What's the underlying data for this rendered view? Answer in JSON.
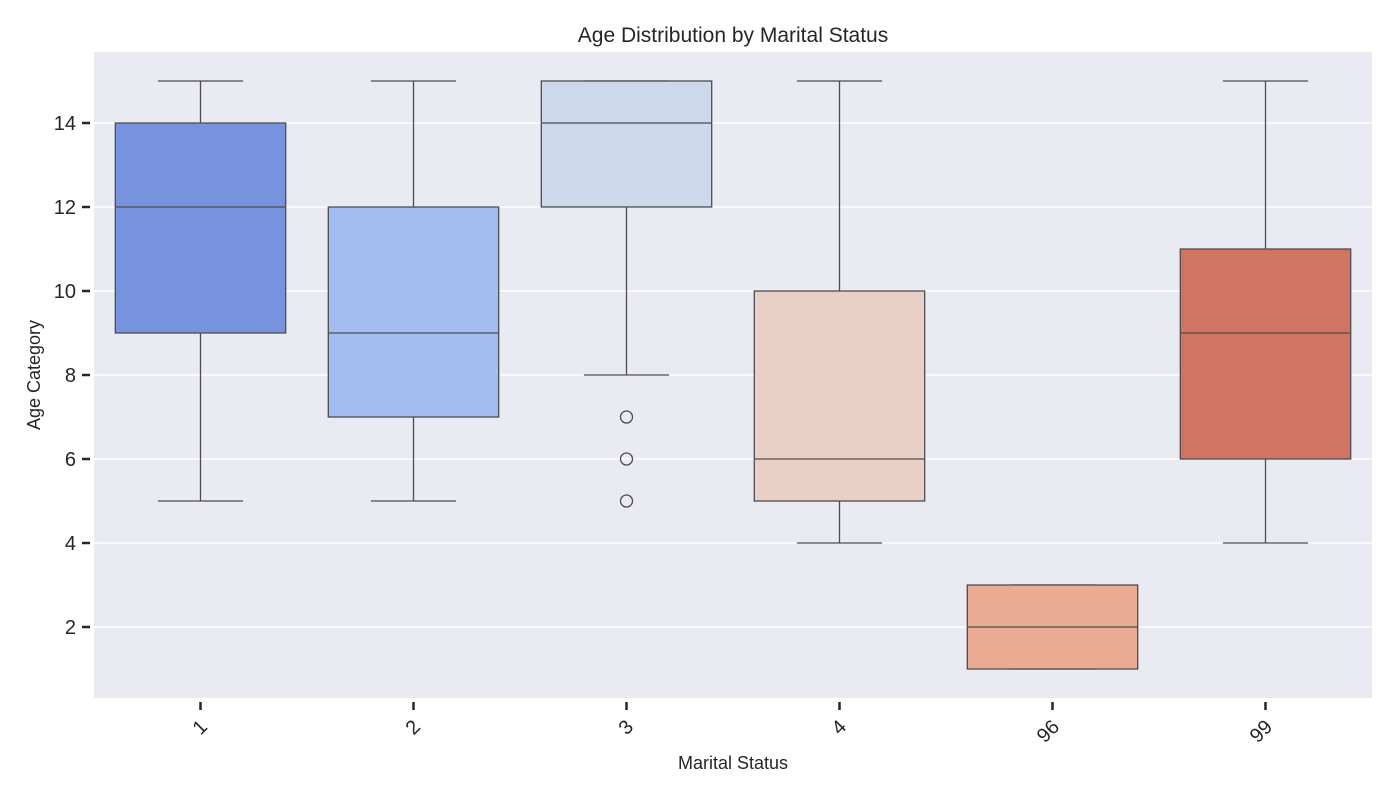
{
  "chart_data": {
    "type": "box",
    "title": "Age Distribution by Marital Status",
    "xlabel": "Marital Status",
    "ylabel": "Age Category",
    "categories": [
      "1",
      "2",
      "3",
      "4",
      "96",
      "99"
    ],
    "ylim": [
      0.2,
      15.7
    ],
    "yticks": [
      2,
      4,
      6,
      8,
      10,
      12,
      14
    ],
    "grid": true,
    "legend": "none",
    "background": "#eaeaf2",
    "boxes": [
      {
        "category": "1",
        "whisker_low": 5,
        "q1": 9,
        "median": 12,
        "q3": 14,
        "whisker_high": 15,
        "outliers": [],
        "color": "#7793de"
      },
      {
        "category": "2",
        "whisker_low": 5,
        "q1": 7,
        "median": 9,
        "q3": 12,
        "whisker_high": 15,
        "outliers": [],
        "color": "#a4bdf0"
      },
      {
        "category": "3",
        "whisker_low": 8,
        "q1": 12,
        "median": 14,
        "q3": 15,
        "whisker_high": 15,
        "outliers": [
          7,
          6,
          5
        ],
        "color": "#cdd8ea"
      },
      {
        "category": "4",
        "whisker_low": 4,
        "q1": 5,
        "median": 6,
        "q3": 10,
        "whisker_high": 15,
        "outliers": [],
        "color": "#e8d0c6"
      },
      {
        "category": "96",
        "whisker_low": 1,
        "q1": 1,
        "median": 2,
        "q3": 3,
        "whisker_high": 3,
        "outliers": [],
        "color": "#e9ab93"
      },
      {
        "category": "99",
        "whisker_low": 4,
        "q1": 6,
        "median": 9,
        "q3": 11,
        "whisker_high": 15,
        "outliers": [],
        "color": "#d17562"
      }
    ]
  }
}
